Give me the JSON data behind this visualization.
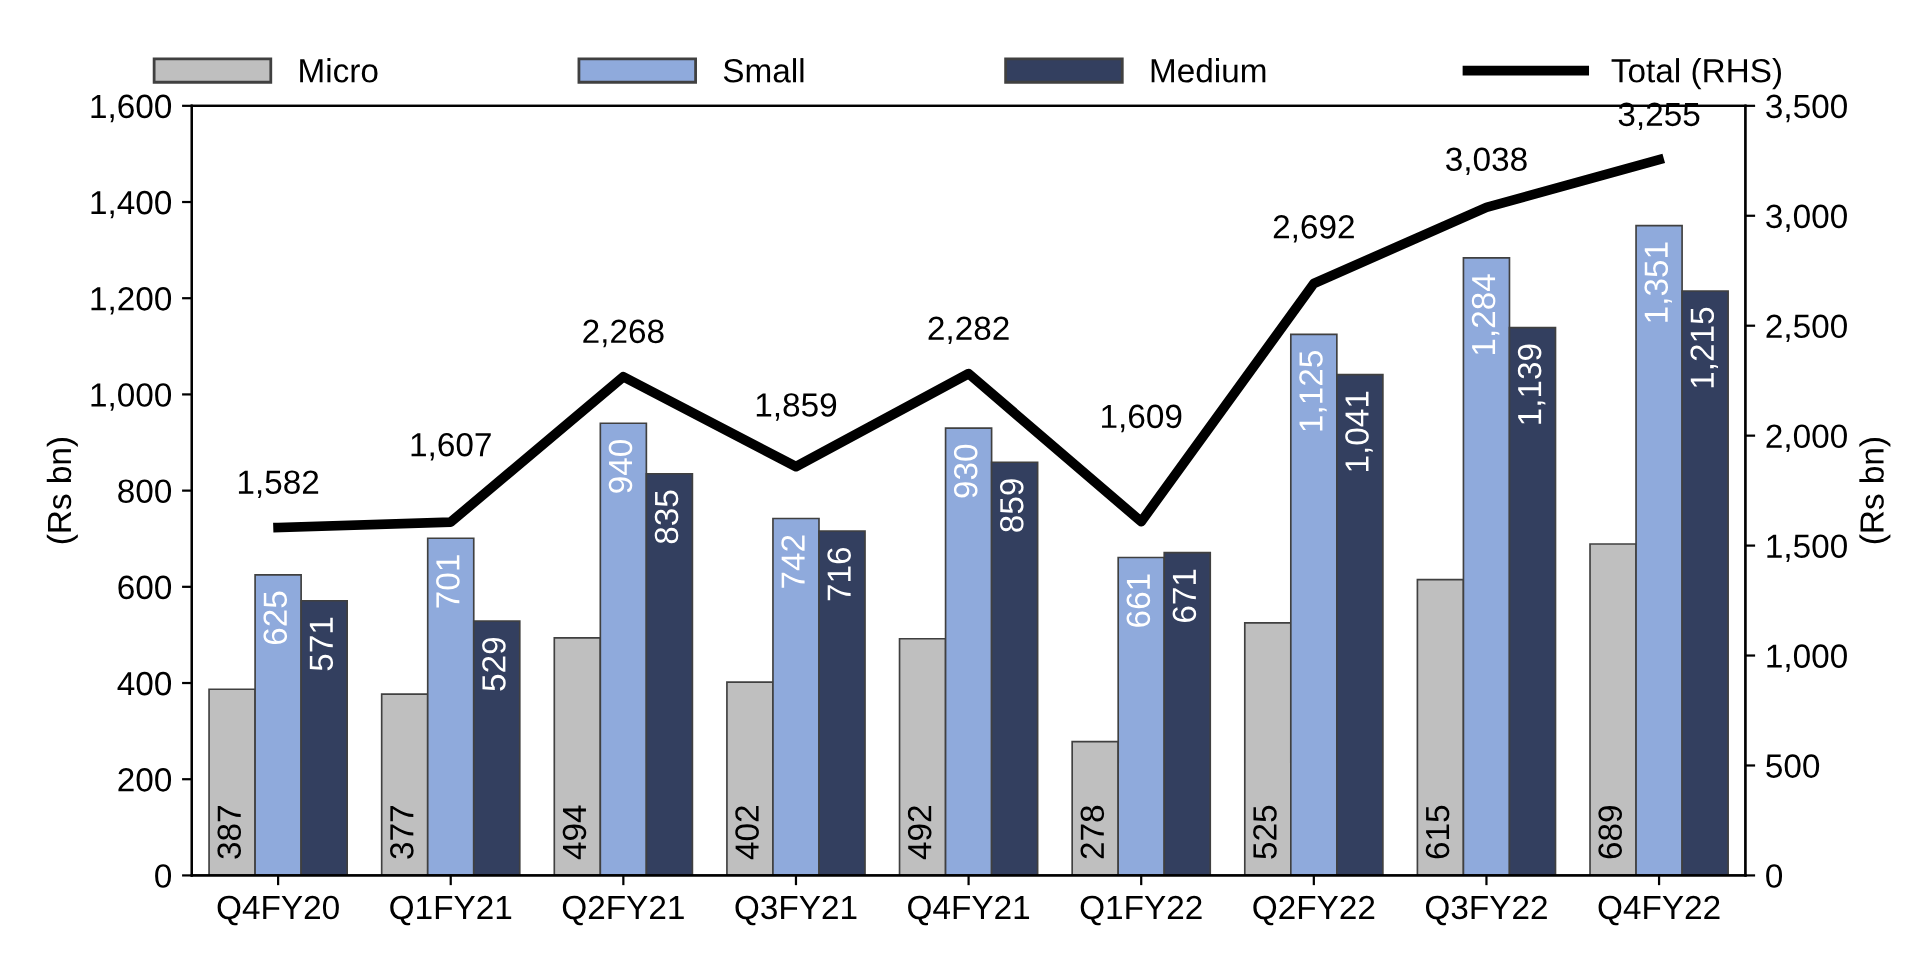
{
  "chart_data": {
    "type": "bar",
    "categories": [
      "Q4FY20",
      "Q1FY21",
      "Q2FY21",
      "Q3FY21",
      "Q4FY21",
      "Q1FY22",
      "Q2FY22",
      "Q3FY22",
      "Q4FY22"
    ],
    "series": [
      {
        "name": "Micro",
        "color": "#bfbfbf",
        "values": [
          387,
          377,
          494,
          402,
          492,
          278,
          525,
          615,
          689
        ],
        "value_labels": [
          "387",
          "377",
          "494",
          "402",
          "492",
          "278",
          "525",
          "615",
          "689"
        ]
      },
      {
        "name": "Small",
        "color": "#8faadc",
        "values": [
          625,
          701,
          940,
          742,
          930,
          661,
          1125,
          1284,
          1351
        ],
        "value_labels": [
          "625",
          "701",
          "940",
          "742",
          "930",
          "661",
          "1,125",
          "1,284",
          "1,351"
        ]
      },
      {
        "name": "Medium",
        "color": "#333f5f",
        "values": [
          571,
          529,
          835,
          716,
          859,
          671,
          1041,
          1139,
          1215
        ],
        "value_labels": [
          "571",
          "529",
          "835",
          "716",
          "859",
          "671",
          "1,041",
          "1,139",
          "1,215"
        ]
      },
      {
        "name": "Total (RHS)",
        "type": "line",
        "axis": "y2",
        "color": "#000000",
        "values": [
          1582,
          1607,
          2268,
          1859,
          2282,
          1609,
          2692,
          3038,
          3255
        ],
        "value_labels": [
          "1,582",
          "1,607",
          "2,268",
          "1,859",
          "2,282",
          "1,609",
          "2,692",
          "3,038",
          "3,255"
        ]
      }
    ],
    "ylabel": "(Rs bn)",
    "y2label": "(Rs bn)",
    "ylim": [
      0,
      1600
    ],
    "yticks": [
      0,
      {
        "value": 200,
        "label": "200"
      },
      {
        "value": 400,
        "label": "400"
      },
      {
        "value": 600,
        "label": "600"
      },
      {
        "value": 800,
        "label": "800"
      },
      {
        "value": 1000,
        "label": "1,000"
      },
      {
        "value": 1200,
        "label": "1,200"
      },
      {
        "value": 1400,
        "label": "1,400"
      },
      {
        "value": 1600,
        "label": "1,600"
      }
    ],
    "y2lim": [
      0,
      3500
    ],
    "y2ticks": [
      0,
      {
        "value": 500,
        "label": "500"
      },
      {
        "value": 1000,
        "label": "1,000"
      },
      {
        "value": 1500,
        "label": "1,500"
      },
      {
        "value": 2000,
        "label": "2,000"
      },
      {
        "value": 2500,
        "label": "2,500"
      },
      {
        "value": 3000,
        "label": "3,000"
      },
      {
        "value": 3500,
        "label": "3,500"
      }
    ],
    "legend": "top",
    "grid": false,
    "marker": "none",
    "line_style": "solid"
  }
}
